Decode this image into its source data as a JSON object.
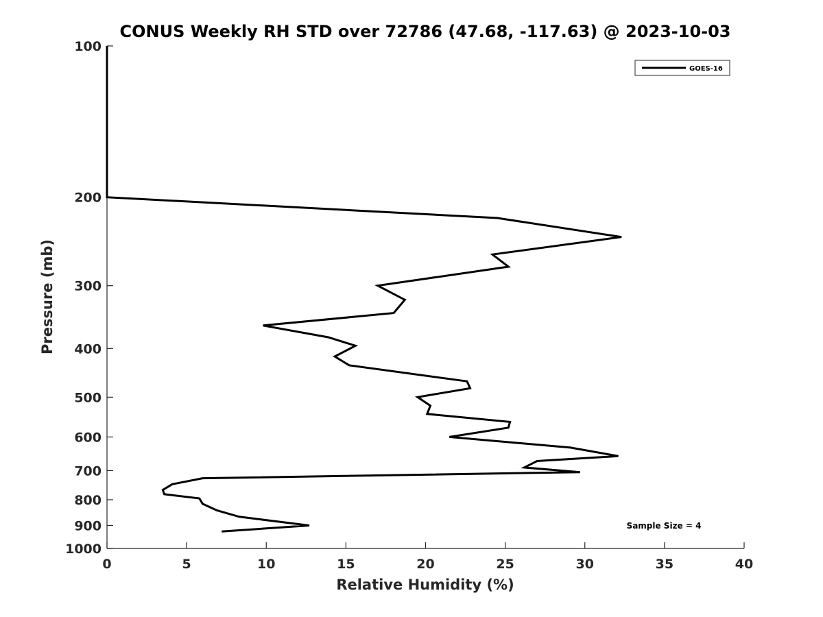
{
  "chart_data": {
    "type": "line",
    "title": "CONUS Weekly RH STD over 72786 (47.68, -117.63) @ 2023-10-03",
    "xlabel": "Relative Humidity (%)",
    "ylabel": "Pressure (mb)",
    "xlim": [
      0,
      40
    ],
    "ylim": [
      100,
      1000
    ],
    "y_scale": "log",
    "y_reversed": true,
    "x_ticks": [
      0,
      5,
      10,
      15,
      20,
      25,
      30,
      35,
      40
    ],
    "y_ticks": [
      100,
      200,
      300,
      400,
      500,
      600,
      700,
      800,
      900,
      1000
    ],
    "grid": false,
    "legend_position": "top-right",
    "series": [
      {
        "name": "GOES-16",
        "color": "#000000",
        "x": [
          0,
          0,
          0,
          24.5,
          32.3,
          24.2,
          25.2,
          17,
          18.7,
          18,
          9.8,
          13.9,
          15.6,
          14.3,
          15.2,
          22.6,
          22.8,
          19.5,
          20.3,
          20.1,
          25.3,
          25.2,
          21.5,
          29.1,
          32.1,
          27,
          26.2,
          29.7,
          6,
          4.1,
          3.5,
          3.6,
          5.8,
          6,
          6.9,
          8.3,
          12.7,
          7.2
        ],
        "y": [
          100,
          150,
          200,
          220,
          240,
          260,
          275,
          300,
          320,
          340,
          360,
          380,
          395,
          415,
          432,
          465,
          480,
          500,
          520,
          540,
          560,
          575,
          600,
          630,
          655,
          670,
          690,
          705,
          725,
          745,
          765,
          780,
          795,
          815,
          840,
          865,
          900,
          925
        ]
      }
    ],
    "annotation": "Sample Size = 4"
  }
}
